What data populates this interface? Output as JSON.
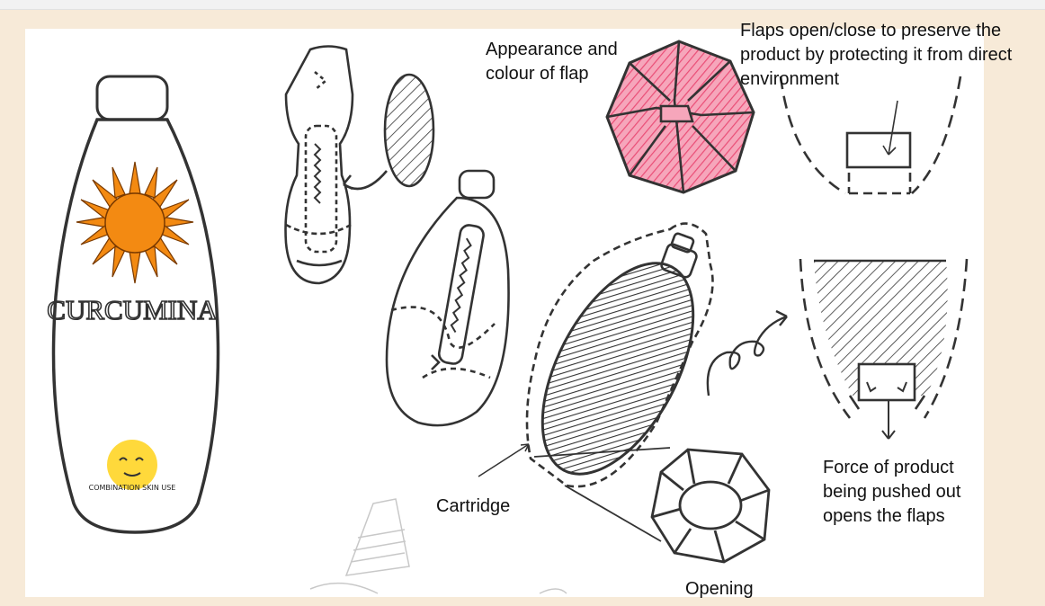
{
  "labels": {
    "appearance": "Appearance and colour of flap",
    "flaps": "Flaps open/close to preserve the product by protecting it from direct environment",
    "cartridge": "Cartridge",
    "force": "Force of product being pushed out opens the flaps",
    "opening": "Opening"
  },
  "bottle": {
    "brand": "CURCUMINA",
    "badge": "COMBINATION SKIN USE"
  },
  "colors": {
    "sun": "#f38a12",
    "flap_pink": "#f0718f",
    "badge_yellow": "#ffd93b",
    "ink": "#333333"
  }
}
